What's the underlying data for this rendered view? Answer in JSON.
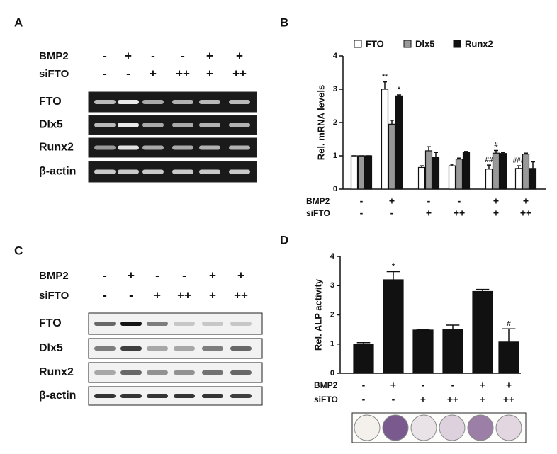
{
  "panel_labels": [
    "A",
    "B",
    "C",
    "D"
  ],
  "blots": [
    {
      "conditions": [
        {
          "name": "BMP2",
          "values": [
            "-",
            "+",
            "-",
            "-",
            "+",
            "+"
          ]
        },
        {
          "name": "siFTO",
          "values": [
            "-",
            "-",
            "+",
            "++",
            "+",
            "++"
          ]
        }
      ],
      "rows": [
        "FTO",
        "Dlx5",
        "Runx2",
        "β-actin"
      ]
    },
    {
      "conditions": [
        {
          "name": "BMP2",
          "values": [
            "-",
            "+",
            "-",
            "-",
            "+",
            "+"
          ]
        },
        {
          "name": "siFTO",
          "values": [
            "-",
            "-",
            "+",
            "++",
            "+",
            "++"
          ]
        }
      ],
      "rows": [
        "FTO",
        "Dlx5",
        "Runx2",
        "β-actin"
      ]
    }
  ],
  "chart_data": [
    {
      "type": "bar",
      "ylabel": "Rel. mRNA levels",
      "ylim": [
        0,
        4
      ],
      "yticks": [
        0,
        1,
        2,
        3,
        4
      ],
      "conditions": [
        {
          "name": "BMP2",
          "values": [
            "-",
            "+",
            "-",
            "-",
            "+",
            "+"
          ]
        },
        {
          "name": "siFTO",
          "values": [
            "-",
            "-",
            "+",
            "++",
            "+",
            "++"
          ]
        }
      ],
      "series": [
        {
          "name": "FTO",
          "color": "#ffffff",
          "values": [
            1,
            3.0,
            0.65,
            0.7,
            0.6,
            0.62
          ],
          "errors": [
            0,
            0.22,
            0.05,
            0.05,
            0.12,
            0.08
          ],
          "marks": [
            null,
            "**",
            null,
            null,
            "##",
            "###"
          ]
        },
        {
          "name": "Dlx5",
          "color": "#999999",
          "values": [
            1,
            1.95,
            1.15,
            0.9,
            1.08,
            1.05
          ],
          "errors": [
            0,
            0.12,
            0.12,
            0.03,
            0.08,
            0.03
          ],
          "marks": [
            null,
            null,
            null,
            null,
            "#",
            null
          ]
        },
        {
          "name": "Runx2",
          "color": "#111111",
          "values": [
            1,
            2.8,
            0.95,
            1.1,
            1.07,
            0.62
          ],
          "errors": [
            0,
            0.03,
            0.15,
            0.03,
            0.03,
            0.2
          ],
          "marks": [
            null,
            "*",
            null,
            null,
            null,
            null
          ]
        }
      ]
    },
    {
      "type": "bar",
      "ylabel": "Rel. ALP activity",
      "ylim": [
        0,
        4
      ],
      "yticks": [
        0,
        1,
        2,
        3,
        4
      ],
      "conditions": [
        {
          "name": "BMP2",
          "values": [
            "-",
            "+",
            "-",
            "-",
            "+",
            "+"
          ]
        },
        {
          "name": "siFTO",
          "values": [
            "-",
            "-",
            "+",
            "++",
            "+",
            "++"
          ]
        }
      ],
      "series": [
        {
          "color": "#111111",
          "values": [
            1,
            3.2,
            1.48,
            1.5,
            2.8,
            1.07
          ],
          "errors": [
            0.05,
            0.28,
            0.03,
            0.15,
            0.07,
            0.45
          ],
          "marks": [
            null,
            "*",
            null,
            null,
            null,
            "#"
          ]
        }
      ]
    }
  ]
}
